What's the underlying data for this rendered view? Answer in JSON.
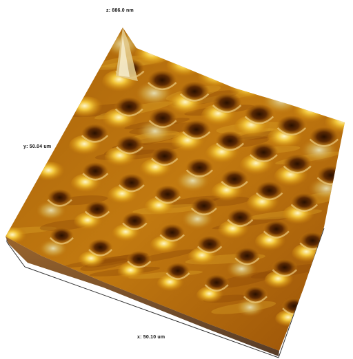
{
  "axes": {
    "z_label": "z: 886.0 nm",
    "y_label": "y: 50.04 um",
    "x_label": "x: 50.10 um"
  },
  "surface": {
    "description_colors": {
      "deep": "#3b1a02",
      "low": "#7a3d04",
      "mid": "#c97a0a",
      "high": "#e9b225",
      "peak": "#fff3b0",
      "ridge": "#d8d2a0"
    },
    "grid_rows": 6,
    "grid_cols": 7
  },
  "frame": {
    "box_color": "#333333"
  }
}
